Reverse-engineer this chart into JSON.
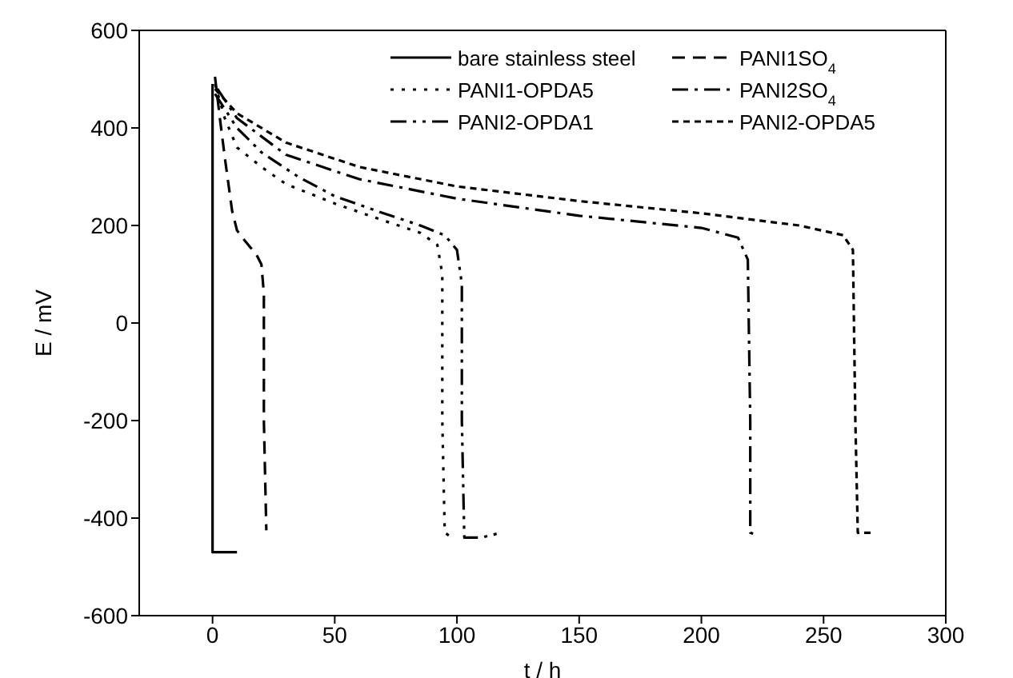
{
  "chart_data": {
    "type": "line",
    "xlabel": "t / h",
    "ylabel": "E / mV",
    "xlim": [
      -30,
      300
    ],
    "xticks": [
      0,
      50,
      100,
      150,
      200,
      250,
      300
    ],
    "ylim": [
      -600,
      600
    ],
    "yticks": [
      -600,
      -400,
      -200,
      0,
      200,
      400,
      600
    ],
    "grid": false,
    "legend": "top right",
    "marker": "none",
    "series": [
      {
        "name": "bare stainless steel",
        "color": "#000000",
        "line_style": "solid",
        "x": [
          0,
          0,
          10
        ],
        "values": [
          490,
          -470,
          -470
        ]
      },
      {
        "name": "PANI1SO$_{4}$",
        "color": "#000000",
        "line_style": "dashed",
        "x": [
          1,
          3,
          5,
          8,
          10,
          13,
          18,
          20,
          21,
          21,
          22
        ],
        "values": [
          505,
          420,
          340,
          230,
          190,
          170,
          140,
          120,
          60,
          -200,
          -425
        ]
      },
      {
        "name": "PANI1-OPDA5",
        "color": "#000000",
        "line_style": "dotted",
        "x": [
          1,
          5,
          10,
          20,
          30,
          50,
          70,
          85,
          92,
          94,
          94,
          95,
          98
        ],
        "values": [
          490,
          420,
          360,
          320,
          285,
          245,
          210,
          185,
          160,
          100,
          -200,
          -430,
          -440
        ]
      },
      {
        "name": "PANI2SO$_{4}$",
        "color": "#000000",
        "line_style": "dashdot",
        "x": [
          2,
          10,
          30,
          60,
          100,
          150,
          200,
          215,
          219,
          220,
          220,
          223
        ],
        "values": [
          480,
          420,
          345,
          295,
          255,
          220,
          195,
          175,
          130,
          -200,
          -430,
          -435
        ]
      },
      {
        "name": "PANI2-OPDA1",
        "color": "#000000",
        "line_style": "dashdotdot",
        "x": [
          1,
          10,
          20,
          35,
          50,
          70,
          85,
          95,
          100,
          102,
          102,
          103,
          110,
          118
        ],
        "values": [
          470,
          400,
          350,
          300,
          260,
          225,
          200,
          180,
          150,
          80,
          -200,
          -440,
          -440,
          -430
        ]
      },
      {
        "name": "PANI2-OPDA5",
        "color": "#000000",
        "line_style": "shortdash",
        "x": [
          1,
          10,
          30,
          60,
          100,
          150,
          200,
          240,
          258,
          262,
          263,
          264,
          270
        ],
        "values": [
          480,
          430,
          370,
          320,
          280,
          250,
          225,
          200,
          180,
          150,
          -200,
          -430,
          -430
        ]
      }
    ]
  }
}
